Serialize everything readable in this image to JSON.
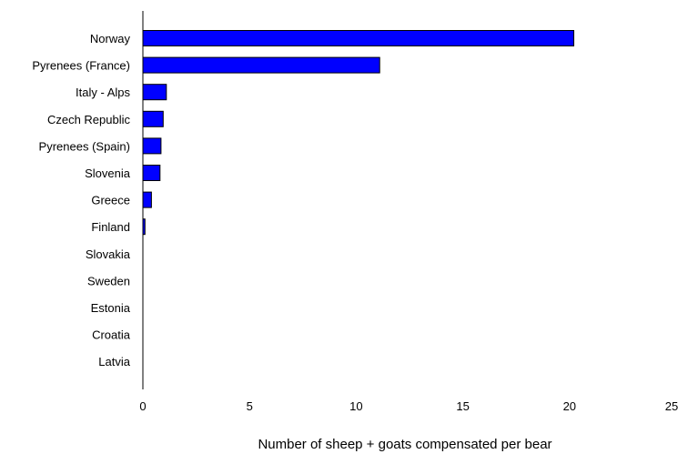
{
  "chart_data": {
    "type": "bar",
    "orientation": "horizontal",
    "categories": [
      "Norway",
      "Pyrenees (France)",
      "Italy - Alps",
      "Czech Republic",
      "Pyrenees (Spain)",
      "Slovenia",
      "Greece",
      "Finland",
      "Slovakia",
      "Sweden",
      "Estonia",
      "Croatia",
      "Latvia"
    ],
    "values": [
      20.2,
      11.1,
      1.1,
      0.95,
      0.85,
      0.8,
      0.4,
      0.1,
      0,
      0,
      0,
      0,
      0
    ],
    "xlabel": "Number of sheep + goats compensated per bear",
    "ylabel": "",
    "xlim": [
      0,
      25
    ],
    "xticks": [
      "0",
      "5",
      "10",
      "15",
      "20",
      "25"
    ],
    "grid": false,
    "legend": "none",
    "colors": {
      "bar_fill": "#0000FF",
      "bar_stroke": "#000000",
      "axis": "#000000"
    }
  }
}
